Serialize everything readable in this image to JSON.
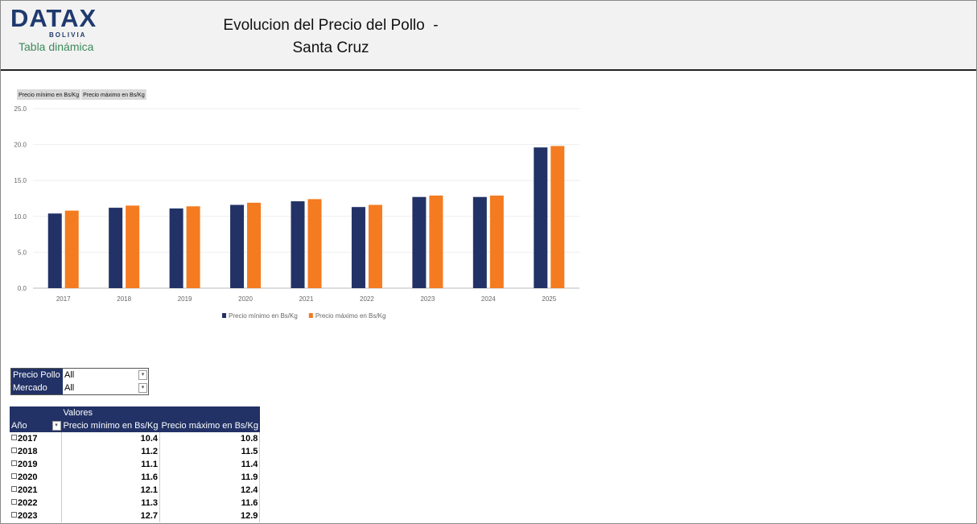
{
  "header": {
    "logo": "DATAX",
    "logo_sub": "BOLIVIA",
    "subtitle": "Tabla dinámica",
    "title": "Evolucion del Precio del Pollo  - Santa Cruz"
  },
  "chart_data": {
    "type": "bar",
    "field_buttons": [
      "Precio mínimo  en Bs/Kg",
      "Precio máximo en Bs/Kg"
    ],
    "categories": [
      "2017",
      "2018",
      "2019",
      "2020",
      "2021",
      "2022",
      "2023",
      "2024",
      "2025"
    ],
    "series": [
      {
        "name": "Precio mínimo en Bs/Kg",
        "color": "#223266",
        "values": [
          10.4,
          11.2,
          11.1,
          11.6,
          12.1,
          11.3,
          12.7,
          12.7,
          19.6
        ]
      },
      {
        "name": "Precio máximo en Bs/Kg",
        "color": "#f47b20",
        "values": [
          10.8,
          11.5,
          11.4,
          11.9,
          12.4,
          11.6,
          12.9,
          12.9,
          19.8
        ]
      }
    ],
    "ylim": [
      0,
      25
    ],
    "yticks": [
      {
        "value": 0,
        "label": "0.0"
      },
      {
        "value": 5,
        "label": "5.0"
      },
      {
        "value": 10,
        "label": "10.0"
      },
      {
        "value": 15,
        "label": "15.0"
      },
      {
        "value": 20,
        "label": "20.0"
      },
      {
        "value": 25,
        "label": "25.0"
      }
    ],
    "grid": true,
    "legend": "bottom"
  },
  "filters": [
    {
      "label": "Precio Pollo",
      "value": "All"
    },
    {
      "label": "Mercado",
      "value": "All"
    }
  ],
  "table": {
    "group_header": "Valores",
    "columns": [
      "Año",
      "Precio mínimo en Bs/Kg",
      "Precio máximo en Bs/Kg"
    ],
    "rows": [
      [
        "2017",
        10.4,
        10.8
      ],
      [
        "2018",
        11.2,
        11.5
      ],
      [
        "2019",
        11.1,
        11.4
      ],
      [
        "2020",
        11.6,
        11.9
      ],
      [
        "2021",
        12.1,
        12.4
      ],
      [
        "2022",
        11.3,
        11.6
      ],
      [
        "2023",
        12.7,
        12.9
      ]
    ]
  }
}
